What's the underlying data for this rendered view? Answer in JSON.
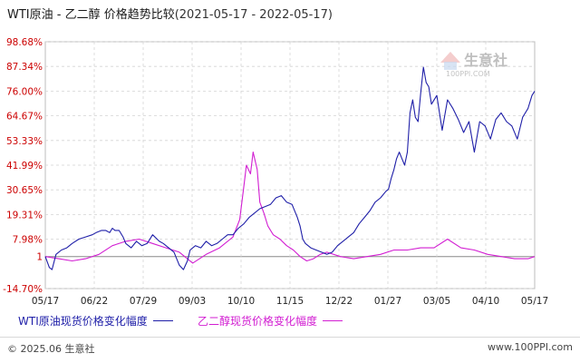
{
  "header": {
    "title": "WTI原油 - 乙二醇 价格趋势比较",
    "range": "(2021-05-17 - 2022-05-17)"
  },
  "watermark": {
    "brand": "生意社",
    "url": "100PPI.COM"
  },
  "footer": {
    "copyright": "© 2025.06 生意社",
    "site": "www.100PPI.com"
  },
  "colors": {
    "wti": "#1f1fa8",
    "meg": "#d21ed2",
    "axis_label": "#cc0000",
    "grid": "#d4d4d4",
    "baseline": "#888888"
  },
  "chart_data": {
    "type": "line",
    "title": "WTI原油 - 乙二醇 价格趋势比较",
    "subtitle": "(2021-05-17 - 2022-05-17)",
    "x_tick_labels": [
      "05/17",
      "06/22",
      "07/29",
      "09/03",
      "10/10",
      "11/15",
      "12/22",
      "01/27",
      "03/05",
      "04/10",
      "05/17"
    ],
    "y_tick_labels": [
      "98.68%",
      "87.34%",
      "76.00%",
      "64.67%",
      "53.33%",
      "41.99%",
      "30.65%",
      "19.31%",
      "7.98%",
      "1",
      "-14.70%"
    ],
    "y_tick_values": [
      98.68,
      87.34,
      76.0,
      64.67,
      53.33,
      41.99,
      30.65,
      19.31,
      7.98,
      0,
      -14.7
    ],
    "ylim": [
      -14.7,
      98.68
    ],
    "xlim_days": [
      0,
      365
    ],
    "grid": true,
    "legend_position": "bottom",
    "series": [
      {
        "name": "WTI原油现货价格变化幅度",
        "x": [
          0,
          3,
          5,
          8,
          12,
          16,
          20,
          25,
          30,
          35,
          38,
          42,
          45,
          48,
          50,
          52,
          55,
          58,
          60,
          64,
          68,
          72,
          76,
          80,
          85,
          88,
          92,
          96,
          100,
          103,
          106,
          108,
          110,
          112,
          116,
          120,
          124,
          128,
          132,
          136,
          140,
          144,
          148,
          152,
          156,
          160,
          164,
          168,
          172,
          176,
          180,
          184,
          188,
          190,
          192,
          194,
          198,
          202,
          206,
          210,
          214,
          218,
          222,
          226,
          230,
          234,
          238,
          242,
          246,
          250,
          254,
          256,
          258,
          260,
          262,
          264,
          266,
          268,
          270,
          272,
          274,
          276,
          278,
          280,
          282,
          284,
          286,
          288,
          292,
          296,
          300,
          304,
          308,
          312,
          316,
          320,
          324,
          328,
          332,
          336,
          340,
          344,
          348,
          352,
          356,
          360,
          363,
          365
        ],
        "y": [
          0,
          -5,
          -6,
          1,
          3,
          4,
          6,
          8,
          9,
          10,
          11,
          12,
          12,
          11,
          13,
          12,
          12,
          9,
          6,
          4,
          7,
          5,
          6,
          10,
          7,
          6,
          4,
          2,
          -4,
          -6,
          -2,
          3,
          4,
          5,
          4,
          7,
          5,
          6,
          8,
          10,
          10,
          13,
          15,
          18,
          20,
          22,
          23,
          24,
          27,
          28,
          25,
          24,
          18,
          14,
          8,
          6,
          4,
          3,
          2,
          1,
          2,
          5,
          7,
          9,
          11,
          15,
          18,
          21,
          25,
          27,
          30,
          31,
          36,
          40,
          45,
          48,
          45,
          42,
          48,
          66,
          72,
          64,
          62,
          75,
          87,
          80,
          78,
          70,
          74,
          58,
          72,
          68,
          63,
          57,
          62,
          48,
          62,
          60,
          54,
          63,
          66,
          62,
          60,
          54,
          64,
          68,
          74,
          76
        ]
      },
      {
        "name": "乙二醇现货价格变化幅度",
        "x": [
          0,
          10,
          20,
          30,
          40,
          50,
          60,
          70,
          80,
          90,
          100,
          110,
          120,
          130,
          140,
          145,
          148,
          150,
          153,
          155,
          158,
          160,
          163,
          166,
          170,
          175,
          180,
          185,
          190,
          195,
          200,
          205,
          210,
          220,
          230,
          240,
          250,
          260,
          270,
          280,
          290,
          300,
          310,
          320,
          330,
          340,
          350,
          360,
          365
        ],
        "y": [
          0,
          -1,
          -2,
          -1,
          1,
          5,
          7,
          8,
          6,
          4,
          2,
          -3,
          1,
          4,
          9,
          17,
          32,
          42,
          38,
          48,
          40,
          25,
          20,
          14,
          10,
          8,
          5,
          3,
          0,
          -2,
          -1,
          1,
          2,
          0,
          -1,
          0,
          1,
          3,
          3,
          4,
          4,
          8,
          4,
          3,
          1,
          0,
          -1,
          -1,
          0
        ]
      }
    ]
  }
}
